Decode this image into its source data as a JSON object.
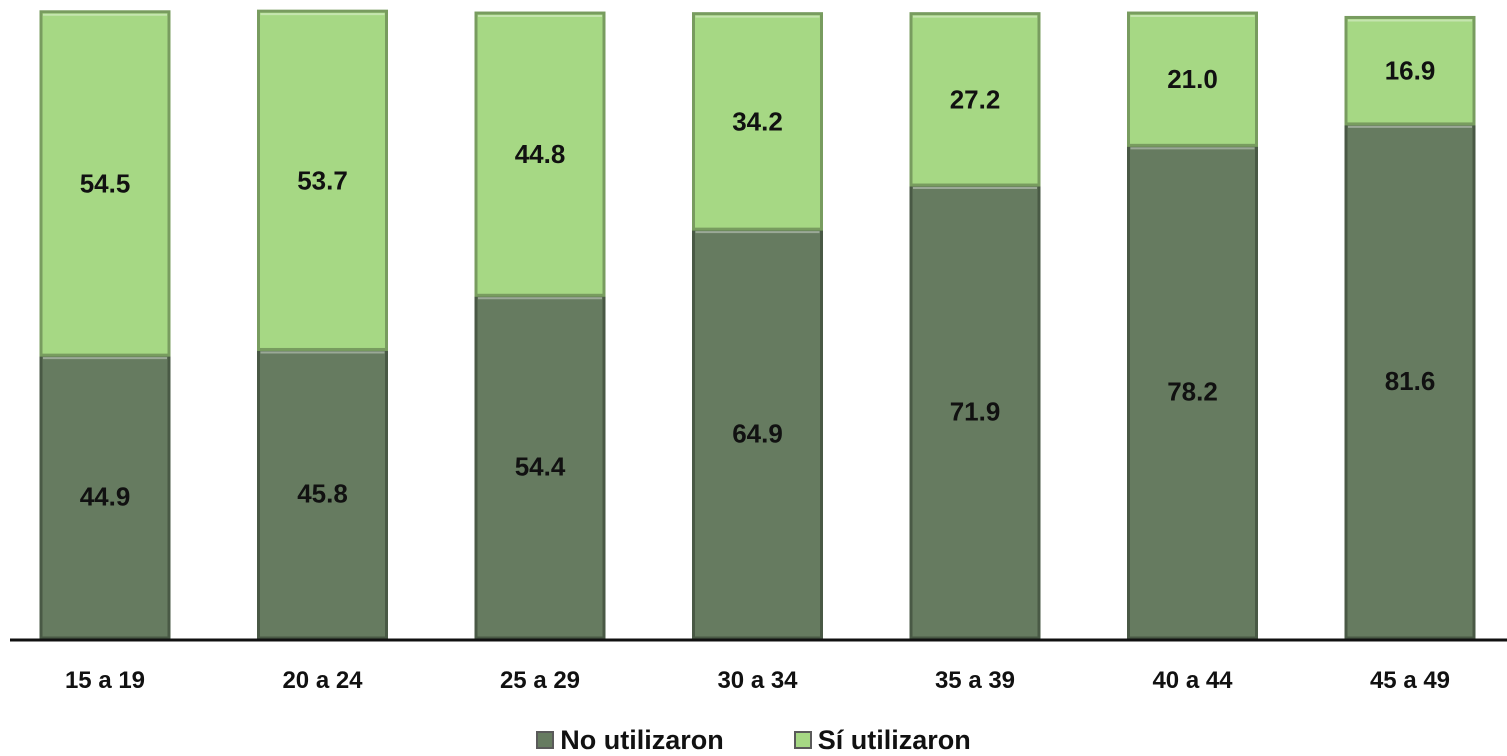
{
  "chart_data": {
    "type": "bar",
    "stacked": true,
    "categories": [
      "15 a 19",
      "20 a 24",
      "25 a 29",
      "30 a 34",
      "35 a 39",
      "40 a 44",
      "45 a 49"
    ],
    "series": [
      {
        "name": "No utilizaron",
        "values": [
          44.9,
          45.8,
          54.4,
          64.9,
          71.9,
          78.2,
          81.6
        ],
        "color": "#667b60"
      },
      {
        "name": "Sí utilizaron",
        "values": [
          54.5,
          53.7,
          44.8,
          34.2,
          27.2,
          21.0,
          16.9
        ],
        "color": "#a6d884"
      }
    ],
    "ylim": [
      0,
      100
    ],
    "grid": false,
    "legend": "bottom"
  }
}
